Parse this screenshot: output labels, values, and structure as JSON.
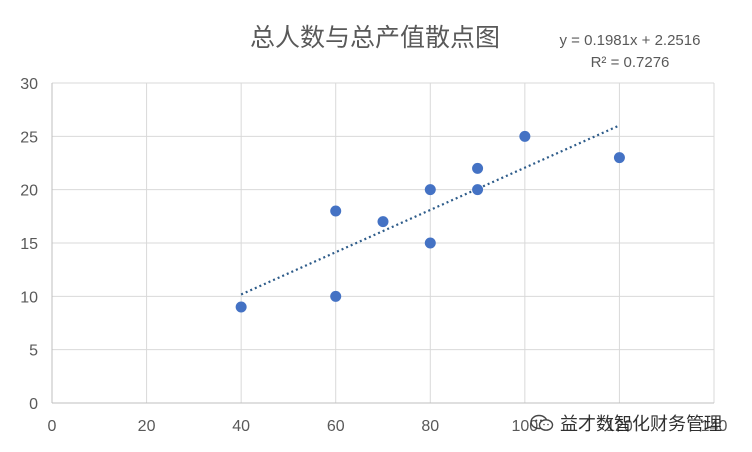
{
  "chart_data": {
    "type": "scatter",
    "title": "总人数与总产值散点图",
    "trendline_equation": "y = 0.1981x + 2.2516",
    "trendline_r2": "R² = 0.7276",
    "trendline": {
      "slope": 0.1981,
      "intercept": 2.2516,
      "x_range": [
        40,
        120
      ]
    },
    "xlim": [
      0,
      140
    ],
    "ylim": [
      0,
      30
    ],
    "x_ticks": [
      0,
      20,
      40,
      60,
      80,
      100,
      120,
      140
    ],
    "y_ticks": [
      0,
      5,
      10,
      15,
      20,
      25,
      30
    ],
    "grid": true,
    "points": [
      {
        "x": 40,
        "y": 9
      },
      {
        "x": 60,
        "y": 18
      },
      {
        "x": 60,
        "y": 10
      },
      {
        "x": 70,
        "y": 17
      },
      {
        "x": 80,
        "y": 20
      },
      {
        "x": 80,
        "y": 15
      },
      {
        "x": 90,
        "y": 22
      },
      {
        "x": 90,
        "y": 20
      },
      {
        "x": 100,
        "y": 25
      },
      {
        "x": 120,
        "y": 23
      }
    ],
    "colors": {
      "points": "#4472C4",
      "trendline": "#2E5C8A",
      "grid": "#D9D9D9",
      "text": "#595959"
    }
  },
  "watermark": {
    "text": "益才数智化财务管理",
    "icon": "wechat-icon"
  }
}
